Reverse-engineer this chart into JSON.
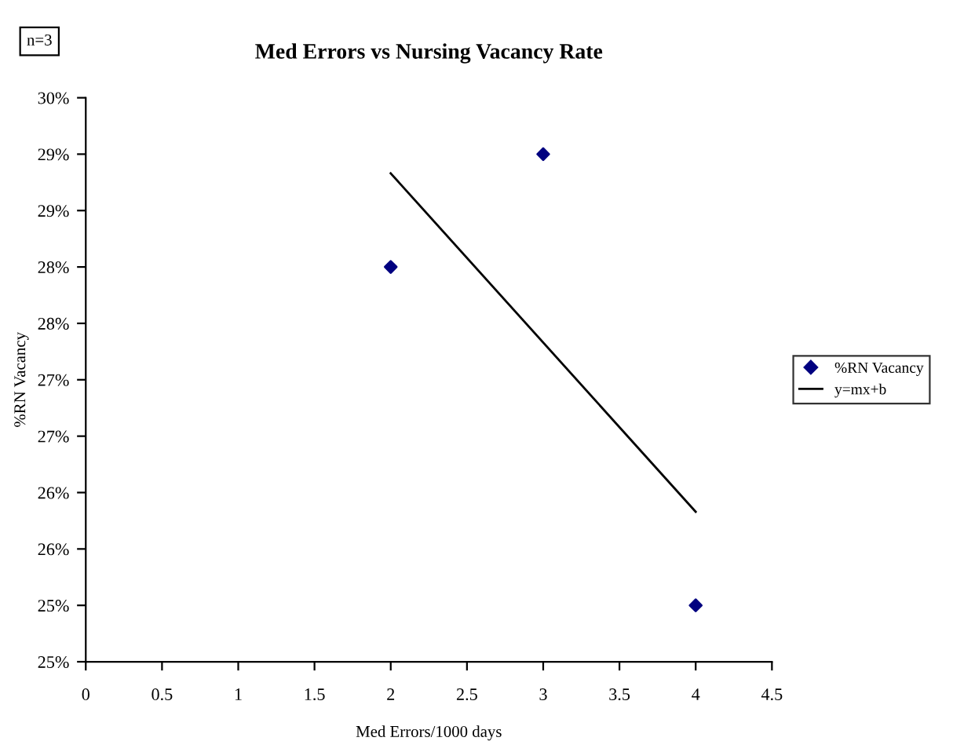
{
  "chart_data": {
    "type": "scatter",
    "title": "Med Errors vs Nursing Vacancy Rate",
    "xlabel": "Med Errors/1000 days",
    "ylabel": "%RN Vacancy",
    "annotations": [
      "n=3"
    ],
    "series": [
      {
        "name": "%RN Vacancy",
        "color": "#000080",
        "marker": "diamond",
        "x": [
          2,
          3,
          4
        ],
        "values": [
          28,
          29,
          25
        ]
      },
      {
        "name": "y=mx+b",
        "type": "line",
        "color": "#000000",
        "marker": "none",
        "line_style": "solid",
        "x": [
          2,
          4
        ],
        "values": [
          28.83,
          25.83
        ]
      }
    ],
    "xlim": [
      0,
      4.5
    ],
    "xticks": [
      0,
      0.5,
      1,
      1.5,
      2,
      2.5,
      3,
      3.5,
      4,
      4.5
    ],
    "ylim": [
      24.5,
      29.5
    ],
    "yticks": [
      {
        "value": 24.5,
        "label": "25%"
      },
      {
        "value": 25,
        "label": "25%"
      },
      {
        "value": 25.5,
        "label": "26%"
      },
      {
        "value": 26,
        "label": "26%"
      },
      {
        "value": 26.5,
        "label": "27%"
      },
      {
        "value": 27,
        "label": "27%"
      },
      {
        "value": 27.5,
        "label": "28%"
      },
      {
        "value": 28,
        "label": "28%"
      },
      {
        "value": 28.5,
        "label": "29%"
      },
      {
        "value": 29,
        "label": "29%"
      },
      {
        "value": 29.5,
        "label": "30%"
      }
    ],
    "grid": false,
    "legend": "right"
  }
}
